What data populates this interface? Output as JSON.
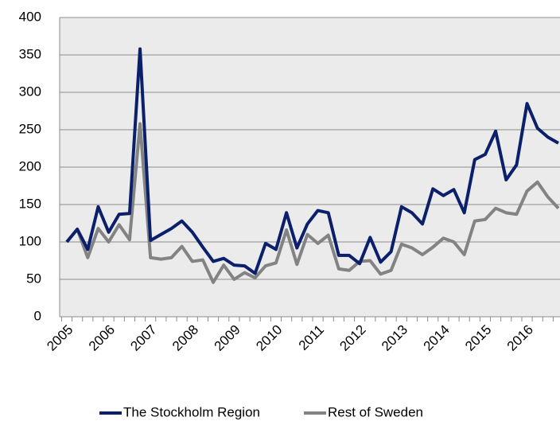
{
  "chart_data": {
    "type": "line",
    "categories": [
      "2005",
      null,
      null,
      null,
      "2006",
      null,
      null,
      null,
      "2007",
      null,
      null,
      null,
      "2008",
      null,
      null,
      null,
      "2009",
      null,
      null,
      null,
      "2010",
      null,
      null,
      null,
      "2011",
      null,
      null,
      null,
      "2012",
      null,
      null,
      null,
      "2013",
      null,
      null,
      null,
      "2014",
      null,
      null,
      null,
      "2015",
      null,
      null,
      null,
      "2016",
      null,
      null,
      null
    ],
    "series": [
      {
        "name": "The Stockholm Region",
        "color": "#0c1f6b",
        "values": [
          100,
          117,
          90,
          147,
          113,
          137,
          138,
          358,
          102,
          110,
          118,
          128,
          113,
          93,
          74,
          78,
          69,
          68,
          58,
          98,
          90,
          139,
          92,
          124,
          142,
          139,
          82,
          82,
          71,
          106,
          73,
          87,
          147,
          139,
          124,
          171,
          162,
          170,
          139,
          210,
          217,
          248,
          183,
          203,
          285,
          252,
          240,
          232
        ]
      },
      {
        "name": "Rest of Sweden",
        "color": "#838383",
        "values": [
          100,
          117,
          79,
          118,
          100,
          123,
          103,
          258,
          79,
          77,
          79,
          94,
          74,
          76,
          46,
          69,
          50,
          59,
          52,
          68,
          72,
          116,
          70,
          110,
          98,
          109,
          64,
          62,
          74,
          75,
          57,
          62,
          97,
          92,
          83,
          93,
          105,
          100,
          83,
          128,
          130,
          145,
          139,
          137,
          168,
          180,
          160,
          145
        ]
      }
    ],
    "ylim": [
      0,
      400
    ],
    "yticks": [
      0,
      50,
      100,
      150,
      200,
      250,
      300,
      350,
      400
    ],
    "grid": true,
    "legend": "bottom"
  }
}
